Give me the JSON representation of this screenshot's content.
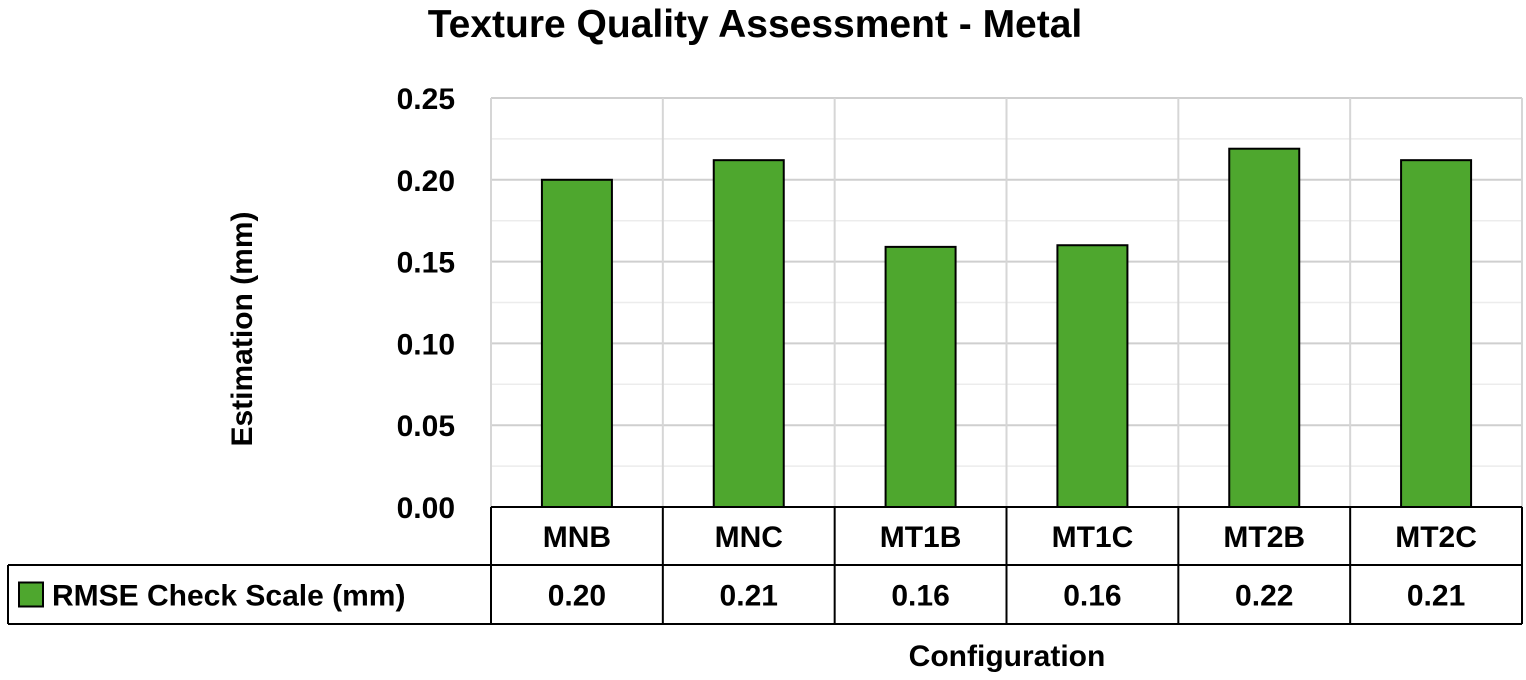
{
  "chart_data": {
    "type": "bar",
    "title": "Texture Quality Assessment - Metal",
    "xlabel": "Configuration",
    "ylabel": "Estimation (mm)",
    "categories": [
      "MNB",
      "MNC",
      "MT1B",
      "MT1C",
      "MT2B",
      "MT2C"
    ],
    "series": [
      {
        "name": "RMSE Check Scale (mm)",
        "values": [
          0.2,
          0.212,
          0.159,
          0.16,
          0.219,
          0.212
        ],
        "labels": [
          "0.20",
          "0.21",
          "0.16",
          "0.16",
          "0.22",
          "0.21"
        ],
        "color": "#4ea72e"
      }
    ],
    "ylim": [
      0,
      0.25
    ],
    "yticks": [
      "0.00",
      "0.05",
      "0.10",
      "0.15",
      "0.20",
      "0.25"
    ],
    "grid": true,
    "data_table": true
  }
}
